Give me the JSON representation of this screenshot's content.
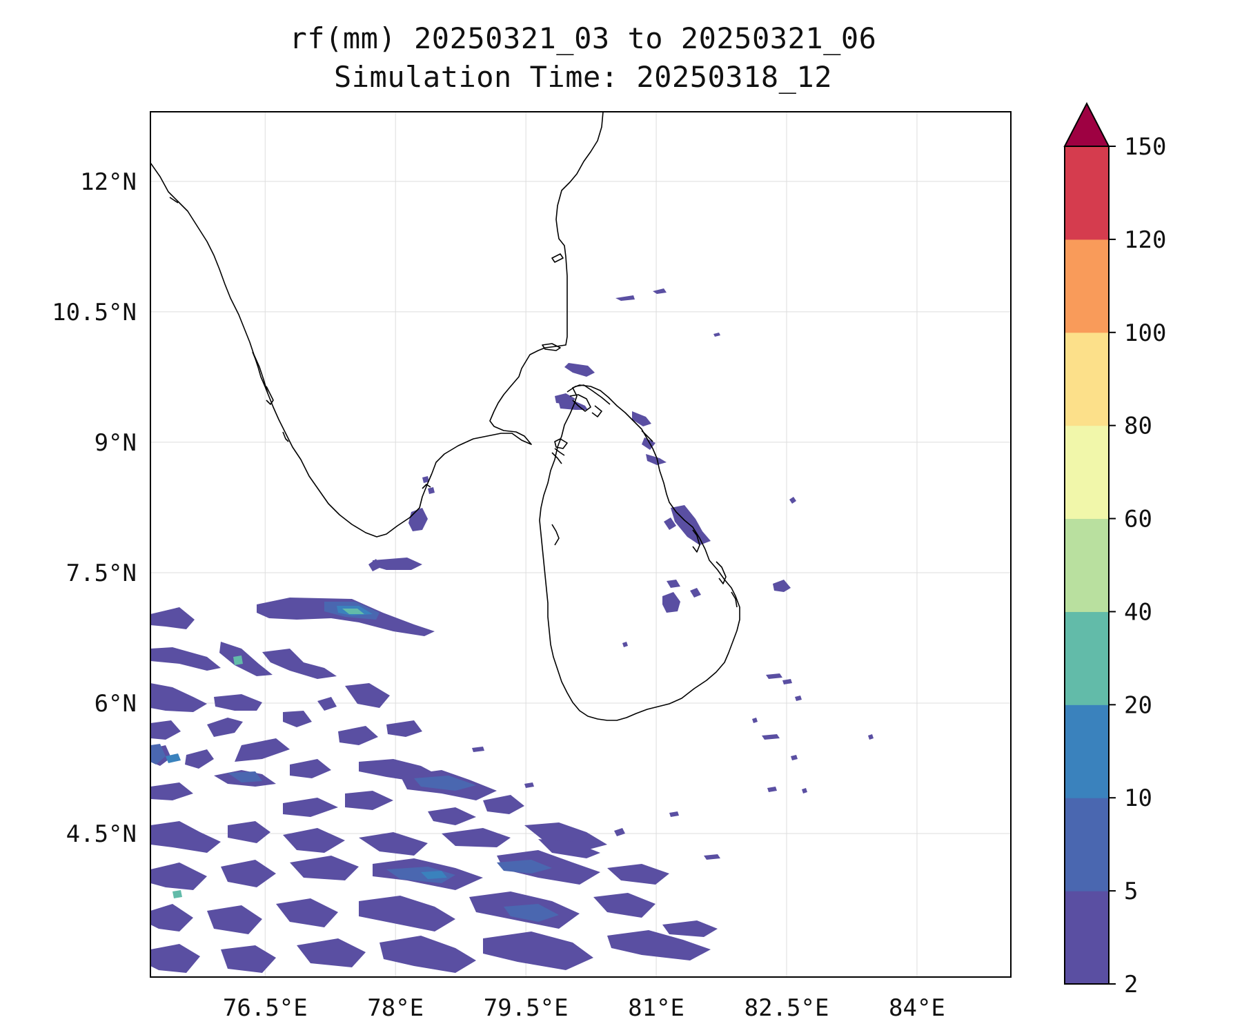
{
  "title": "rf(mm) 20250321_03 to 20250321_06",
  "subtitle": "Simulation Time: 20250318_12",
  "map": {
    "lon_range": [
      75.18,
      85.08
    ],
    "lat_range": [
      2.85,
      12.8
    ],
    "lon_ticks": [
      "76.5°E",
      "78°E",
      "79.5°E",
      "81°E",
      "82.5°E",
      "84°E"
    ],
    "lon_tick_values": [
      76.5,
      78,
      79.5,
      81,
      82.5,
      84
    ],
    "lat_ticks": [
      "12°N",
      "10.5°N",
      "9°N",
      "7.5°N",
      "6°N",
      "4.5°N"
    ],
    "lat_tick_values": [
      12,
      10.5,
      9,
      7.5,
      6,
      4.5
    ],
    "grid": true,
    "coastline_color": "#000000",
    "rain_color_levels": [
      "#5a4fa2",
      "#4a67b0",
      "#3a82bd",
      "#62bba9",
      "#b9e09f",
      "#f1f7aa",
      "#fce08a",
      "#f99b5a",
      "#d53c4e",
      "#9e0142"
    ]
  },
  "colorbar": {
    "labels": [
      "2",
      "5",
      "10",
      "20",
      "40",
      "60",
      "80",
      "100",
      "120",
      "150"
    ],
    "colors": [
      "#5a4fa2",
      "#4a67b0",
      "#3a82bd",
      "#62bba9",
      "#b9e09f",
      "#f1f7aa",
      "#fce08a",
      "#f99b5a",
      "#d53c4e"
    ],
    "extend_color": "#9e0142"
  }
}
